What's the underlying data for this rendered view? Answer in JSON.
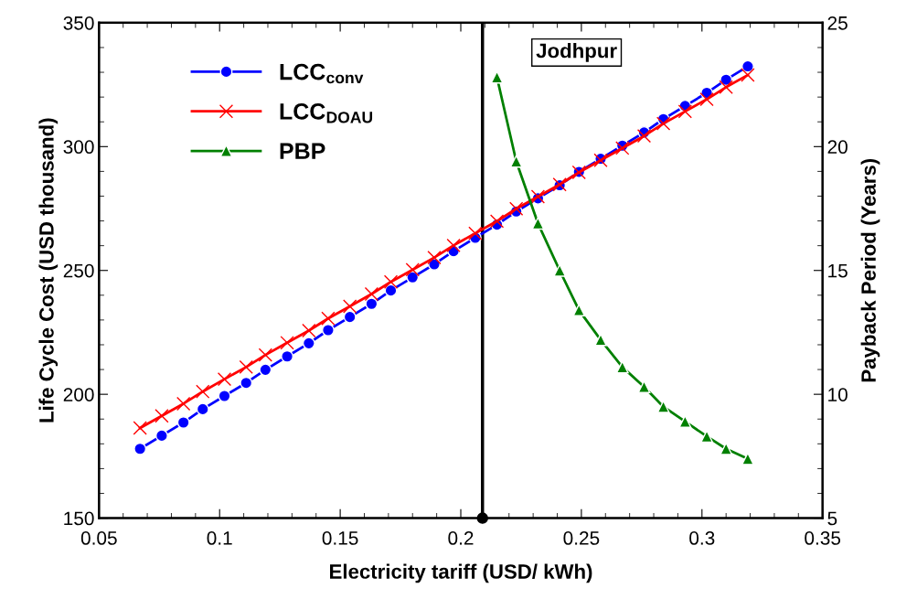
{
  "chart_data": {
    "type": "line",
    "xlabel": "Electricity tariff (USD/ kWh)",
    "ylabel": "Life Cycle Cost (USD thousand)",
    "y2label": "Payback Period (Years)",
    "annotations": [
      "Jodhpur"
    ],
    "xlim": [
      0.05,
      0.35
    ],
    "xticks": [
      0.05,
      {
        "value": 0.1,
        "label": "0.1"
      },
      0.15,
      {
        "value": 0.2,
        "label": "0.2"
      },
      0.25,
      {
        "value": 0.3,
        "label": "0.3"
      },
      0.35
    ],
    "ylim": [
      150,
      350
    ],
    "yticks": [
      150,
      200,
      250,
      300,
      350
    ],
    "y2lim": [
      5,
      25
    ],
    "y2ticks": [
      5,
      10,
      15,
      20,
      25
    ],
    "legend": "top left",
    "grid": false,
    "ref_lines": [
      {
        "axis": "x",
        "value": 0.209,
        "label": null,
        "color": "#000000"
      }
    ],
    "series": [
      {
        "name": "LCC$_{conv}$",
        "color": "#0000ff",
        "marker": "circle",
        "x": [
          0.067,
          0.076,
          0.085,
          0.093,
          0.102,
          0.111,
          0.119,
          0.128,
          0.137,
          0.145,
          0.154,
          0.163,
          0.171,
          0.18,
          0.189,
          0.197,
          0.206,
          0.215,
          0.223,
          0.232,
          0.241,
          0.249,
          0.258,
          0.267,
          0.276,
          0.284,
          0.293,
          0.302,
          0.31,
          0.319
        ],
        "values": [
          178.0,
          183.3,
          188.6,
          194.0,
          199.3,
          204.6,
          209.9,
          215.3,
          220.6,
          225.9,
          231.2,
          236.5,
          241.9,
          247.2,
          252.5,
          257.8,
          263.2,
          268.5,
          273.8,
          279.1,
          284.4,
          289.8,
          295.1,
          300.4,
          305.7,
          311.1,
          316.4,
          321.7,
          327.0,
          332.4
        ]
      },
      {
        "name": "LCC$_{DOAU}$",
        "color": "#ff0000",
        "marker": "cross",
        "x": [
          0.067,
          0.076,
          0.085,
          0.093,
          0.102,
          0.111,
          0.119,
          0.128,
          0.137,
          0.145,
          0.154,
          0.163,
          0.171,
          0.18,
          0.189,
          0.197,
          0.206,
          0.215,
          0.223,
          0.232,
          0.241,
          0.249,
          0.258,
          0.267,
          0.276,
          0.284,
          0.293,
          0.302,
          0.31,
          0.319
        ],
        "values": [
          186.4,
          191.3,
          196.2,
          201.1,
          206.1,
          211.0,
          215.9,
          220.8,
          225.7,
          230.6,
          235.5,
          240.5,
          245.4,
          250.3,
          255.2,
          260.1,
          265.0,
          269.9,
          274.9,
          279.8,
          284.7,
          289.6,
          294.5,
          299.4,
          304.3,
          309.3,
          314.2,
          319.1,
          324.0,
          328.9
        ]
      },
      {
        "name": "PBP",
        "color": "#008000",
        "marker": "triangle",
        "axis": "y2",
        "x": [
          0.215,
          0.223,
          0.232,
          0.241,
          0.249,
          0.258,
          0.267,
          0.276,
          0.284,
          0.293,
          0.302,
          0.31,
          0.319
        ],
        "values": [
          22.8,
          19.4,
          16.9,
          15.0,
          13.4,
          12.2,
          11.1,
          10.3,
          9.5,
          8.9,
          8.3,
          7.8,
          7.4
        ]
      }
    ]
  }
}
